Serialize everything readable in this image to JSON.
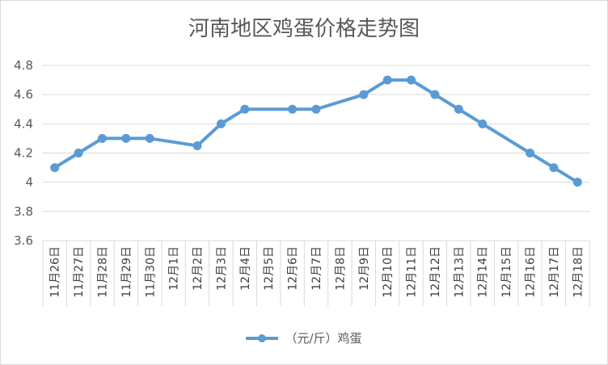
{
  "chart_data": {
    "type": "line",
    "title": "河南地区鸡蛋价格走势图",
    "xlabel": "",
    "ylabel": "",
    "categories": [
      "11月26日",
      "11月27日",
      "11月28日",
      "11月29日",
      "11月30日",
      "12月1日",
      "12月2日",
      "12月3日",
      "12月4日",
      "12月5日",
      "12月6日",
      "12月7日",
      "12月8日",
      "12月9日",
      "12月10日",
      "12月11日",
      "12月12日",
      "12月13日",
      "12月14日",
      "12月15日",
      "12月16日",
      "12月17日",
      "12月18日"
    ],
    "series": [
      {
        "name": "（元/斤）鸡蛋",
        "color": "#5b9bd5",
        "values": [
          4.1,
          4.2,
          4.3,
          4.3,
          4.3,
          null,
          4.25,
          4.4,
          4.5,
          null,
          4.5,
          4.5,
          null,
          4.6,
          4.7,
          4.7,
          4.6,
          4.5,
          4.4,
          null,
          4.2,
          4.1,
          4.0
        ]
      }
    ],
    "ylim": [
      3.6,
      4.8
    ],
    "yticks": [
      "3.6",
      "3.8",
      "4",
      "4.2",
      "4.4",
      "4.6",
      "4.8"
    ],
    "grid": true,
    "legend": "bottom"
  }
}
